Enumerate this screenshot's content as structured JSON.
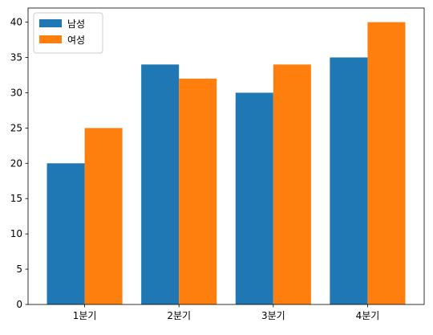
{
  "chart_data": {
    "type": "bar",
    "categories": [
      "1분기",
      "2분기",
      "3분기",
      "4분기"
    ],
    "series": [
      {
        "name": "남성",
        "values": [
          20,
          34,
          30,
          35
        ],
        "color": "#1f77b4"
      },
      {
        "name": "여성",
        "values": [
          25,
          32,
          34,
          40
        ],
        "color": "#ff7f0e"
      }
    ],
    "title": "",
    "xlabel": "",
    "ylabel": "",
    "ylim": [
      0,
      42
    ],
    "yticks": [
      0,
      5,
      10,
      15,
      20,
      25,
      30,
      35,
      40
    ],
    "grid": false,
    "legend_position": "top-left"
  }
}
